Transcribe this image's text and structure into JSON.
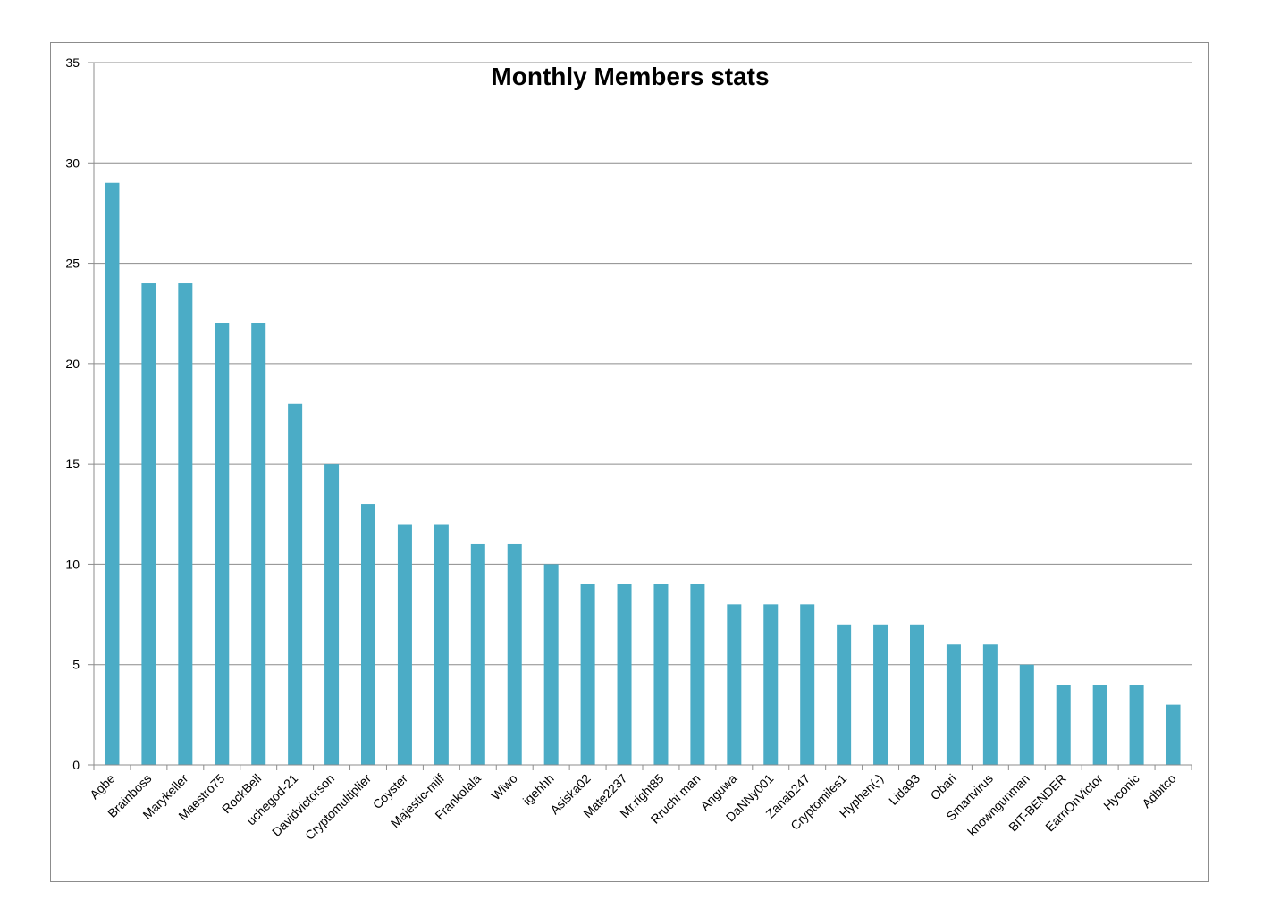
{
  "chart_data": {
    "type": "bar",
    "title": "Monthly Members stats",
    "xlabel": "",
    "ylabel": "",
    "ylim": [
      0,
      35
    ],
    "yticks": [
      0,
      5,
      10,
      15,
      20,
      25,
      30,
      35
    ],
    "grid": true,
    "legend": "none",
    "bar_color": "#4BACC6",
    "categories": [
      "Agbe",
      "Brainboss",
      "Marykeller",
      "Maestro75",
      "RockBell",
      "uchegod-21",
      "Davidvictorson",
      "Cryptomultiplier",
      "Coyster",
      "Majestic-milf",
      "Frankolala",
      "Wiwo",
      "igehhh",
      "Asiska02",
      "Mate2237",
      "Mr.right85",
      "Rruchi man",
      "Anguwa",
      "DaNNy001",
      "Zanab247",
      "Cryptomiles1",
      "Hyphen(-)",
      "Lida93",
      "Obari",
      "Smartvirus",
      "knowngunman",
      "BIT-BENDER",
      "EarnOnVictor",
      "Hyconic",
      "Adbitco"
    ],
    "values": [
      29,
      24,
      24,
      22,
      22,
      18,
      15,
      13,
      12,
      12,
      11,
      11,
      10,
      9,
      9,
      9,
      9,
      8,
      8,
      8,
      7,
      7,
      7,
      6,
      6,
      5,
      4,
      4,
      4,
      3
    ]
  }
}
